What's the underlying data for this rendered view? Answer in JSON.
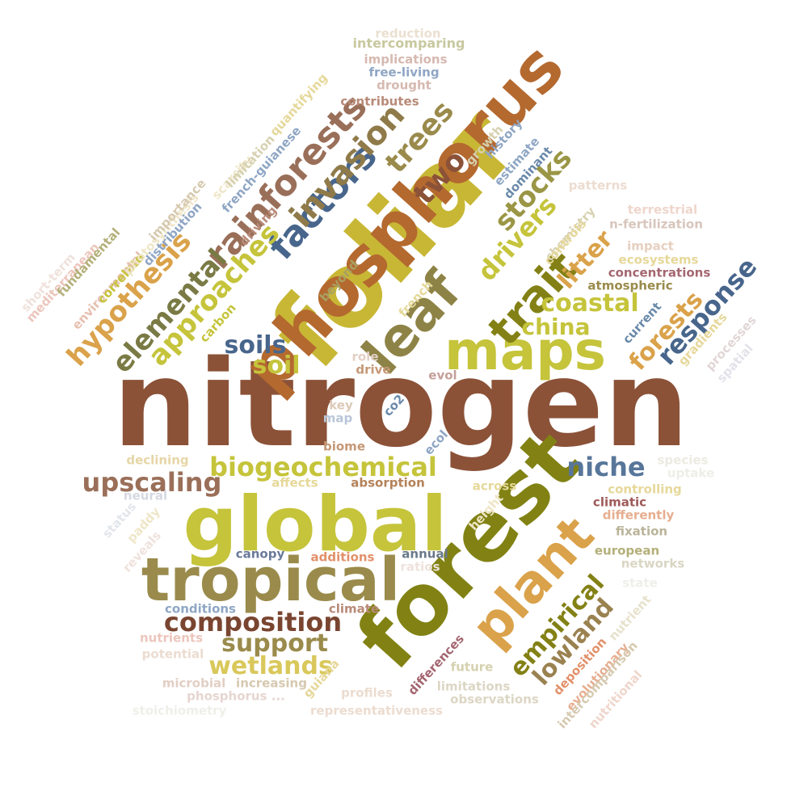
{
  "wordcloud": {
    "words": [
      {
        "text": "nitrogen",
        "color": "#8b5238"
      },
      {
        "text": "foliar",
        "color": "#c8b735"
      },
      {
        "text": "forest",
        "color": "#818213"
      },
      {
        "text": "global",
        "color": "#c5c43b"
      },
      {
        "text": "phosphorus",
        "color": "#b4692f"
      },
      {
        "text": "tropical",
        "color": "#9a8b4c"
      },
      {
        "text": "maps",
        "color": "#c5c43b"
      },
      {
        "text": "leaf",
        "color": "#8e8346"
      },
      {
        "text": "plant",
        "color": "#daa24a"
      },
      {
        "text": "trait",
        "color": "#838115"
      },
      {
        "text": "rainforests",
        "color": "#9a6f59"
      },
      {
        "text": "factors",
        "color": "#48668c"
      },
      {
        "text": "invasion",
        "color": "#8f7a49"
      },
      {
        "text": "trees",
        "color": "#9a8b4c"
      },
      {
        "text": "two",
        "color": "#8b5238"
      },
      {
        "text": "stocks",
        "color": "#9a9645"
      },
      {
        "text": "drivers",
        "color": "#c5c43b"
      },
      {
        "text": "approaches",
        "color": "#c5c43b"
      },
      {
        "text": "elemental",
        "color": "#7a7a45"
      },
      {
        "text": "hypothesis",
        "color": "#daa24a"
      },
      {
        "text": "niche",
        "color": "#58769a"
      },
      {
        "text": "upscaling",
        "color": "#9a6f59"
      },
      {
        "text": "biogeochemical",
        "color": "#c5c43b"
      },
      {
        "text": "composition",
        "color": "#7a4530"
      },
      {
        "text": "support",
        "color": "#9a8b4c"
      },
      {
        "text": "wetlands",
        "color": "#d9c85a"
      },
      {
        "text": "empirical",
        "color": "#838115"
      },
      {
        "text": "lowland",
        "color": "#9a8250"
      },
      {
        "text": "coastal",
        "color": "#c5c43b"
      },
      {
        "text": "china",
        "color": "#c5c43b"
      },
      {
        "text": "forests",
        "color": "#daa24a"
      },
      {
        "text": "response",
        "color": "#48668c"
      },
      {
        "text": "litter",
        "color": "#daa24a"
      },
      {
        "text": "soils",
        "color": "#48668c"
      },
      {
        "text": "soil",
        "color": "#c5c43b"
      },
      {
        "text": "intercomparing",
        "color": "#c8c8a0"
      },
      {
        "text": "implications",
        "color": "#d6b9b0"
      },
      {
        "text": "free-living",
        "color": "#8fa6c4"
      },
      {
        "text": "drought",
        "color": "#d6b9b0"
      },
      {
        "text": "contributes",
        "color": "#b88a78"
      },
      {
        "text": "reduction",
        "color": "#ebe0d0"
      },
      {
        "text": "patterns",
        "color": "#ecdcd0"
      },
      {
        "text": "terrestrial",
        "color": "#efd6cc"
      },
      {
        "text": "n-fertilization",
        "color": "#d8c6bc"
      },
      {
        "text": "impact",
        "color": "#e6d0c0"
      },
      {
        "text": "ecosystems",
        "color": "#e6d89a"
      },
      {
        "text": "concentrations",
        "color": "#a46670"
      },
      {
        "text": "atmospheric",
        "color": "#9a8b4c"
      },
      {
        "text": "role",
        "color": "#e2cfc4"
      },
      {
        "text": "drive",
        "color": "#c59876"
      },
      {
        "text": "evol",
        "color": "#c4a09a"
      },
      {
        "text": "key",
        "color": "#dccab8"
      },
      {
        "text": "map",
        "color": "#b8c6d8"
      },
      {
        "text": "co2",
        "color": "#6a8aaa"
      },
      {
        "text": "ecol",
        "color": "#8fa6c4"
      },
      {
        "text": "biome",
        "color": "#c59876"
      },
      {
        "text": "declining",
        "color": "#e6d6a6"
      },
      {
        "text": "affects",
        "color": "#e6d89a"
      },
      {
        "text": "absorption",
        "color": "#b4825a"
      },
      {
        "text": "across",
        "color": "#e6d89a"
      },
      {
        "text": "species",
        "color": "#ecebe2"
      },
      {
        "text": "uptake",
        "color": "#eeeee8"
      },
      {
        "text": "controlling",
        "color": "#e6d89a"
      },
      {
        "text": "climatic",
        "color": "#a05a5a"
      },
      {
        "text": "differently",
        "color": "#e6ae90"
      },
      {
        "text": "fixation",
        "color": "#bab49a"
      },
      {
        "text": "european",
        "color": "#b4b07a"
      },
      {
        "text": "networks",
        "color": "#dad6c4"
      },
      {
        "text": "neural",
        "color": "#d6d8e2"
      },
      {
        "text": "canopy",
        "color": "#6a7a9a"
      },
      {
        "text": "additions",
        "color": "#e2906a"
      },
      {
        "text": "annual",
        "color": "#6a7a8a"
      },
      {
        "text": "ratios",
        "color": "#efe2dc"
      },
      {
        "text": "conditions",
        "color": "#8fa6c4"
      },
      {
        "text": "climate",
        "color": "#b88a78"
      },
      {
        "text": "nutrients",
        "color": "#ecc6bc"
      },
      {
        "text": "potential",
        "color": "#ecdcd0"
      },
      {
        "text": "microbial",
        "color": "#e2cfc4"
      },
      {
        "text": "increasing",
        "color": "#d6c9b0"
      },
      {
        "text": "phosphorus ...",
        "color": "#e6d6d0"
      },
      {
        "text": "stoichiometry",
        "color": "#efefea"
      },
      {
        "text": "representativeness",
        "color": "#ecdcd0"
      },
      {
        "text": "profiles",
        "color": "#ecdcd0"
      },
      {
        "text": "future",
        "color": "#d6d1b0"
      },
      {
        "text": "limitations",
        "color": "#dcd6c4"
      },
      {
        "text": "observations",
        "color": "#dcd6c4"
      },
      {
        "text": "state",
        "color": "#efefea"
      },
      {
        "text": "short-term",
        "color": "#efe2dc"
      },
      {
        "text": "mediterranean",
        "color": "#ecc6bc"
      },
      {
        "text": "fundamental",
        "color": "#b4b07a"
      },
      {
        "text": "environmental",
        "color": "#e6c0b0"
      },
      {
        "text": "correlate",
        "color": "#c5c43b"
      },
      {
        "text": "photosynthesis",
        "color": "#efe6c8"
      },
      {
        "text": "importance",
        "color": "#d6c9b0"
      },
      {
        "text": "distribution",
        "color": "#8fa6c4"
      },
      {
        "text": "scarcity",
        "color": "#efe6c8"
      },
      {
        "text": "limitation",
        "color": "#d6d1b0"
      },
      {
        "text": "quantifying",
        "color": "#e6d89a"
      },
      {
        "text": "french-guianese",
        "color": "#8fa6c4"
      },
      {
        "text": "driving",
        "color": "#b88a78"
      },
      {
        "text": "growth",
        "color": "#d6d1b0"
      },
      {
        "text": "history",
        "color": "#8fa6c4"
      },
      {
        "text": "estimate",
        "color": "#8fa6c4"
      },
      {
        "text": "dominant",
        "color": "#6a8aaa"
      },
      {
        "text": "chemistry",
        "color": "#d6d1b0"
      },
      {
        "text": "controls",
        "color": "#e6d89a"
      },
      {
        "text": "beyond",
        "color": "#a8a060"
      },
      {
        "text": "carbon",
        "color": "#c5c43b"
      },
      {
        "text": "french",
        "color": "#e6d89a"
      },
      {
        "text": "current",
        "color": "#6a8aaa"
      },
      {
        "text": "gradients",
        "color": "#e6d89a"
      },
      {
        "text": "processes",
        "color": "#e2d6d6"
      },
      {
        "text": "spatial",
        "color": "#e2e2ea"
      },
      {
        "text": "status",
        "color": "#e2e6ea"
      },
      {
        "text": "paddy",
        "color": "#efe6c8"
      },
      {
        "text": "reveals",
        "color": "#efe2dc"
      },
      {
        "text": "height",
        "color": "#efe6c8"
      },
      {
        "text": "guiana",
        "color": "#e6d89a"
      },
      {
        "text": "differences",
        "color": "#a46670"
      },
      {
        "text": "nutrient",
        "color": "#e6e2cc"
      },
      {
        "text": "deposition",
        "color": "#e2906a"
      },
      {
        "text": "evolutionary",
        "color": "#e6ae90"
      },
      {
        "text": "intercomparison",
        "color": "#d6c9b0"
      },
      {
        "text": "nutritional",
        "color": "#efd6cc"
      }
    ]
  }
}
